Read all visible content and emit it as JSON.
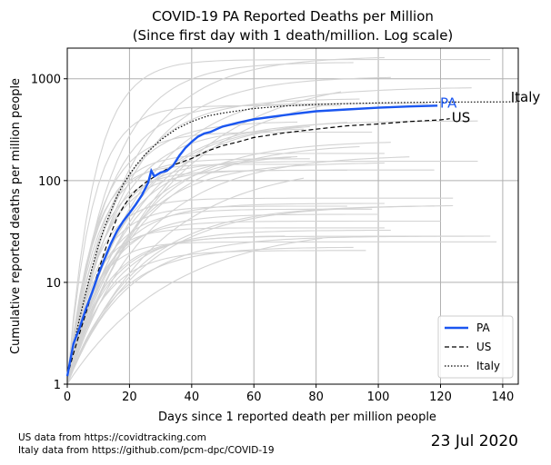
{
  "chart_data": {
    "type": "line",
    "title": "COVID-19 PA Reported Deaths per Million",
    "subtitle": "(Since first day with 1 death/million. Log scale)",
    "xlabel": "Days since 1 reported death per million people",
    "ylabel": "Cumulative reported deaths per million people",
    "xlim": [
      0,
      145
    ],
    "ylim": [
      1,
      2000
    ],
    "yscale": "log",
    "xticks": [
      "0",
      "20",
      "40",
      "60",
      "80",
      "100",
      "120",
      "140"
    ],
    "yticks": [
      "1",
      "10",
      "100",
      "1000"
    ],
    "grid": true,
    "legend_position": "bottom-right",
    "legend": [
      "PA",
      "US",
      "Italy"
    ],
    "series": [
      {
        "name": "PA",
        "color": "#1a56f0",
        "style": "solid",
        "x": [
          0,
          2,
          4,
          6,
          8,
          10,
          12,
          14,
          16,
          18,
          20,
          22,
          24,
          26,
          27,
          28,
          30,
          32,
          34,
          36,
          38,
          40,
          42,
          44,
          46,
          48,
          50,
          55,
          60,
          65,
          70,
          75,
          80,
          90,
          100,
          110,
          119
        ],
        "y": [
          1.2,
          2.5,
          3.6,
          5.5,
          8,
          12,
          17,
          24,
          32,
          40,
          48,
          58,
          72,
          95,
          125,
          110,
          120,
          125,
          140,
          175,
          210,
          240,
          270,
          290,
          300,
          320,
          340,
          370,
          400,
          420,
          440,
          460,
          480,
          500,
          520,
          535,
          545
        ]
      },
      {
        "name": "US",
        "color": "#000000",
        "style": "dashed",
        "x": [
          0,
          2,
          4,
          6,
          8,
          10,
          12,
          14,
          16,
          18,
          20,
          22,
          25,
          30,
          35,
          40,
          45,
          50,
          55,
          60,
          70,
          80,
          90,
          100,
          110,
          120,
          123
        ],
        "y": [
          1.2,
          2,
          3.2,
          5,
          8,
          13,
          20,
          30,
          43,
          55,
          68,
          80,
          95,
          120,
          145,
          165,
          195,
          220,
          240,
          265,
          295,
          320,
          345,
          360,
          380,
          395,
          405
        ]
      },
      {
        "name": "Italy",
        "color": "#000000",
        "style": "dotted",
        "x": [
          0,
          2,
          4,
          6,
          8,
          10,
          12,
          14,
          16,
          18,
          20,
          22,
          25,
          30,
          35,
          40,
          45,
          50,
          60,
          70,
          80,
          90,
          100,
          110,
          120,
          130,
          140,
          145
        ],
        "y": [
          1.2,
          2.4,
          4.5,
          8,
          14,
          23,
          35,
          50,
          70,
          92,
          115,
          140,
          180,
          250,
          320,
          380,
          430,
          460,
          510,
          540,
          560,
          570,
          580,
          585,
          590,
          592,
          593,
          594
        ]
      }
    ],
    "annotations": [
      {
        "text": "PA",
        "x": 119,
        "y": 545,
        "color": "#1a56f0"
      },
      {
        "text": "US",
        "x": 123,
        "y": 400,
        "color": "#000000"
      },
      {
        "text": "Italy",
        "x": 142,
        "y": 594,
        "color": "#000000"
      }
    ],
    "background_series_color": "#d3d3d3"
  },
  "footer": {
    "source_us": "US data from https://covidtracking.com",
    "source_italy": "Italy data from https://github.com/pcm-dpc/COVID-19",
    "date": "23 Jul 2020"
  }
}
